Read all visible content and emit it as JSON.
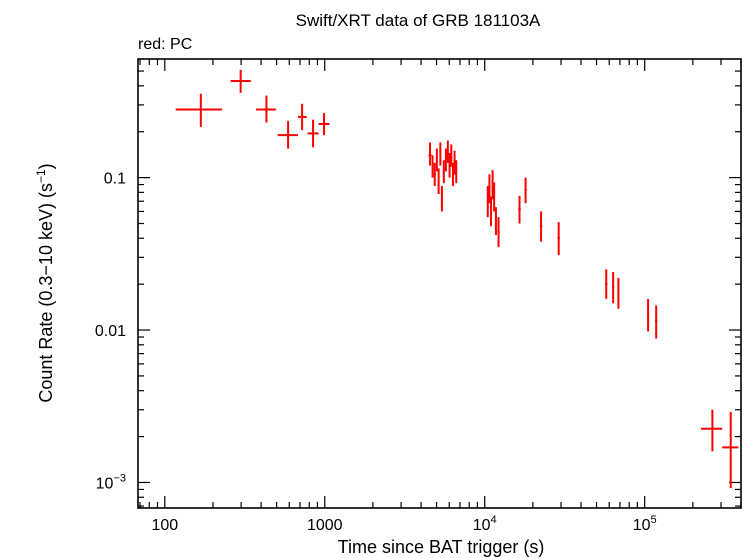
{
  "chart_data": {
    "type": "scatter",
    "title": "Swift/XRT data of GRB 181103A",
    "subtitle": "red: PC",
    "xlabel": "Time since BAT trigger (s)",
    "ylabel_parts": {
      "main": "Count Rate (0.3−10 keV) (s",
      "sup": "−1",
      "close": ")"
    },
    "x_scale": "log",
    "y_scale": "log",
    "xlim": [
      68,
      400000
    ],
    "ylim": [
      0.00068,
      0.6
    ],
    "x_ticks": [
      {
        "value": 100,
        "label": "100",
        "sup": ""
      },
      {
        "value": 1000,
        "label": "1000",
        "sup": ""
      },
      {
        "value": 10000,
        "label": "10",
        "sup": "4"
      },
      {
        "value": 100000,
        "label": "10",
        "sup": "5"
      }
    ],
    "y_ticks": [
      {
        "value": 0.001,
        "label": "10",
        "sup": "−3"
      },
      {
        "value": 0.01,
        "label": "0.01",
        "sup": ""
      },
      {
        "value": 0.1,
        "label": "0.1",
        "sup": ""
      }
    ],
    "series": [
      {
        "color": "#ff0000",
        "points": [
          {
            "x": 168,
            "xlo": 117,
            "xhi": 228,
            "y": 0.28,
            "ylo": 0.215,
            "yhi": 0.355
          },
          {
            "x": 298,
            "xlo": 258,
            "xhi": 345,
            "y": 0.43,
            "ylo": 0.36,
            "yhi": 0.51
          },
          {
            "x": 432,
            "xlo": 372,
            "xhi": 495,
            "y": 0.28,
            "ylo": 0.23,
            "yhi": 0.345
          },
          {
            "x": 590,
            "xlo": 508,
            "xhi": 680,
            "y": 0.19,
            "ylo": 0.155,
            "yhi": 0.235
          },
          {
            "x": 722,
            "xlo": 680,
            "xhi": 770,
            "y": 0.25,
            "ylo": 0.205,
            "yhi": 0.305
          },
          {
            "x": 845,
            "xlo": 780,
            "xhi": 915,
            "y": 0.195,
            "ylo": 0.158,
            "yhi": 0.24
          },
          {
            "x": 990,
            "xlo": 915,
            "xhi": 1070,
            "y": 0.225,
            "ylo": 0.19,
            "yhi": 0.265
          },
          {
            "x": 4550,
            "xlo": 4450,
            "xhi": 4650,
            "y": 0.14,
            "ylo": 0.12,
            "yhi": 0.17
          },
          {
            "x": 4720,
            "xlo": 4650,
            "xhi": 4790,
            "y": 0.12,
            "ylo": 0.1,
            "yhi": 0.14
          },
          {
            "x": 4870,
            "xlo": 4800,
            "xhi": 4940,
            "y": 0.105,
            "ylo": 0.088,
            "yhi": 0.125
          },
          {
            "x": 5020,
            "xlo": 4950,
            "xhi": 5090,
            "y": 0.13,
            "ylo": 0.11,
            "yhi": 0.155
          },
          {
            "x": 5150,
            "xlo": 5090,
            "xhi": 5210,
            "y": 0.095,
            "ylo": 0.078,
            "yhi": 0.115
          },
          {
            "x": 5280,
            "xlo": 5220,
            "xhi": 5340,
            "y": 0.145,
            "ylo": 0.12,
            "yhi": 0.17
          },
          {
            "x": 5400,
            "xlo": 5340,
            "xhi": 5460,
            "y": 0.073,
            "ylo": 0.06,
            "yhi": 0.088
          },
          {
            "x": 5550,
            "xlo": 5470,
            "xhi": 5630,
            "y": 0.11,
            "ylo": 0.092,
            "yhi": 0.13
          },
          {
            "x": 5720,
            "xlo": 5640,
            "xhi": 5800,
            "y": 0.13,
            "ylo": 0.11,
            "yhi": 0.155
          },
          {
            "x": 5880,
            "xlo": 5800,
            "xhi": 5960,
            "y": 0.15,
            "ylo": 0.125,
            "yhi": 0.175
          },
          {
            "x": 6030,
            "xlo": 5960,
            "xhi": 6100,
            "y": 0.12,
            "ylo": 0.1,
            "yhi": 0.145
          },
          {
            "x": 6180,
            "xlo": 6110,
            "xhi": 6250,
            "y": 0.14,
            "ylo": 0.118,
            "yhi": 0.165
          },
          {
            "x": 6330,
            "xlo": 6260,
            "xhi": 6400,
            "y": 0.105,
            "ylo": 0.088,
            "yhi": 0.125
          },
          {
            "x": 6480,
            "xlo": 6410,
            "xhi": 6550,
            "y": 0.125,
            "ylo": 0.105,
            "yhi": 0.15
          },
          {
            "x": 6640,
            "xlo": 6560,
            "xhi": 6720,
            "y": 0.11,
            "ylo": 0.092,
            "yhi": 0.13
          },
          {
            "x": 10450,
            "xlo": 10350,
            "xhi": 10550,
            "y": 0.07,
            "ylo": 0.055,
            "yhi": 0.088
          },
          {
            "x": 10700,
            "xlo": 10600,
            "xhi": 10800,
            "y": 0.085,
            "ylo": 0.068,
            "yhi": 0.105
          },
          {
            "x": 10950,
            "xlo": 10850,
            "xhi": 11050,
            "y": 0.06,
            "ylo": 0.048,
            "yhi": 0.075
          },
          {
            "x": 11200,
            "xlo": 11100,
            "xhi": 11300,
            "y": 0.09,
            "ylo": 0.072,
            "yhi": 0.112
          },
          {
            "x": 11450,
            "xlo": 11350,
            "xhi": 11550,
            "y": 0.075,
            "ylo": 0.06,
            "yhi": 0.093
          },
          {
            "x": 11750,
            "xlo": 11600,
            "xhi": 11900,
            "y": 0.052,
            "ylo": 0.042,
            "yhi": 0.064
          },
          {
            "x": 12200,
            "xlo": 12000,
            "xhi": 12400,
            "y": 0.044,
            "ylo": 0.035,
            "yhi": 0.055
          },
          {
            "x": 16500,
            "xlo": 16200,
            "xhi": 16800,
            "y": 0.062,
            "ylo": 0.05,
            "yhi": 0.076
          },
          {
            "x": 18000,
            "xlo": 17700,
            "xhi": 18300,
            "y": 0.083,
            "ylo": 0.068,
            "yhi": 0.1
          },
          {
            "x": 22500,
            "xlo": 22100,
            "xhi": 22900,
            "y": 0.048,
            "ylo": 0.038,
            "yhi": 0.06
          },
          {
            "x": 29000,
            "xlo": 28500,
            "xhi": 29500,
            "y": 0.04,
            "ylo": 0.031,
            "yhi": 0.051
          },
          {
            "x": 57500,
            "xlo": 56500,
            "xhi": 58500,
            "y": 0.02,
            "ylo": 0.016,
            "yhi": 0.025
          },
          {
            "x": 63500,
            "xlo": 62500,
            "xhi": 64500,
            "y": 0.019,
            "ylo": 0.015,
            "yhi": 0.024
          },
          {
            "x": 68500,
            "xlo": 67500,
            "xhi": 69500,
            "y": 0.0175,
            "ylo": 0.0138,
            "yhi": 0.022
          },
          {
            "x": 105000,
            "xlo": 103500,
            "xhi": 106500,
            "y": 0.0125,
            "ylo": 0.0098,
            "yhi": 0.016
          },
          {
            "x": 118000,
            "xlo": 116000,
            "xhi": 120000,
            "y": 0.0115,
            "ylo": 0.0088,
            "yhi": 0.0145
          },
          {
            "x": 265000,
            "xlo": 225000,
            "xhi": 305000,
            "y": 0.00225,
            "ylo": 0.0016,
            "yhi": 0.003
          },
          {
            "x": 345000,
            "xlo": 305000,
            "xhi": 385000,
            "y": 0.0017,
            "ylo": 0.00092,
            "yhi": 0.0029
          }
        ]
      }
    ]
  }
}
